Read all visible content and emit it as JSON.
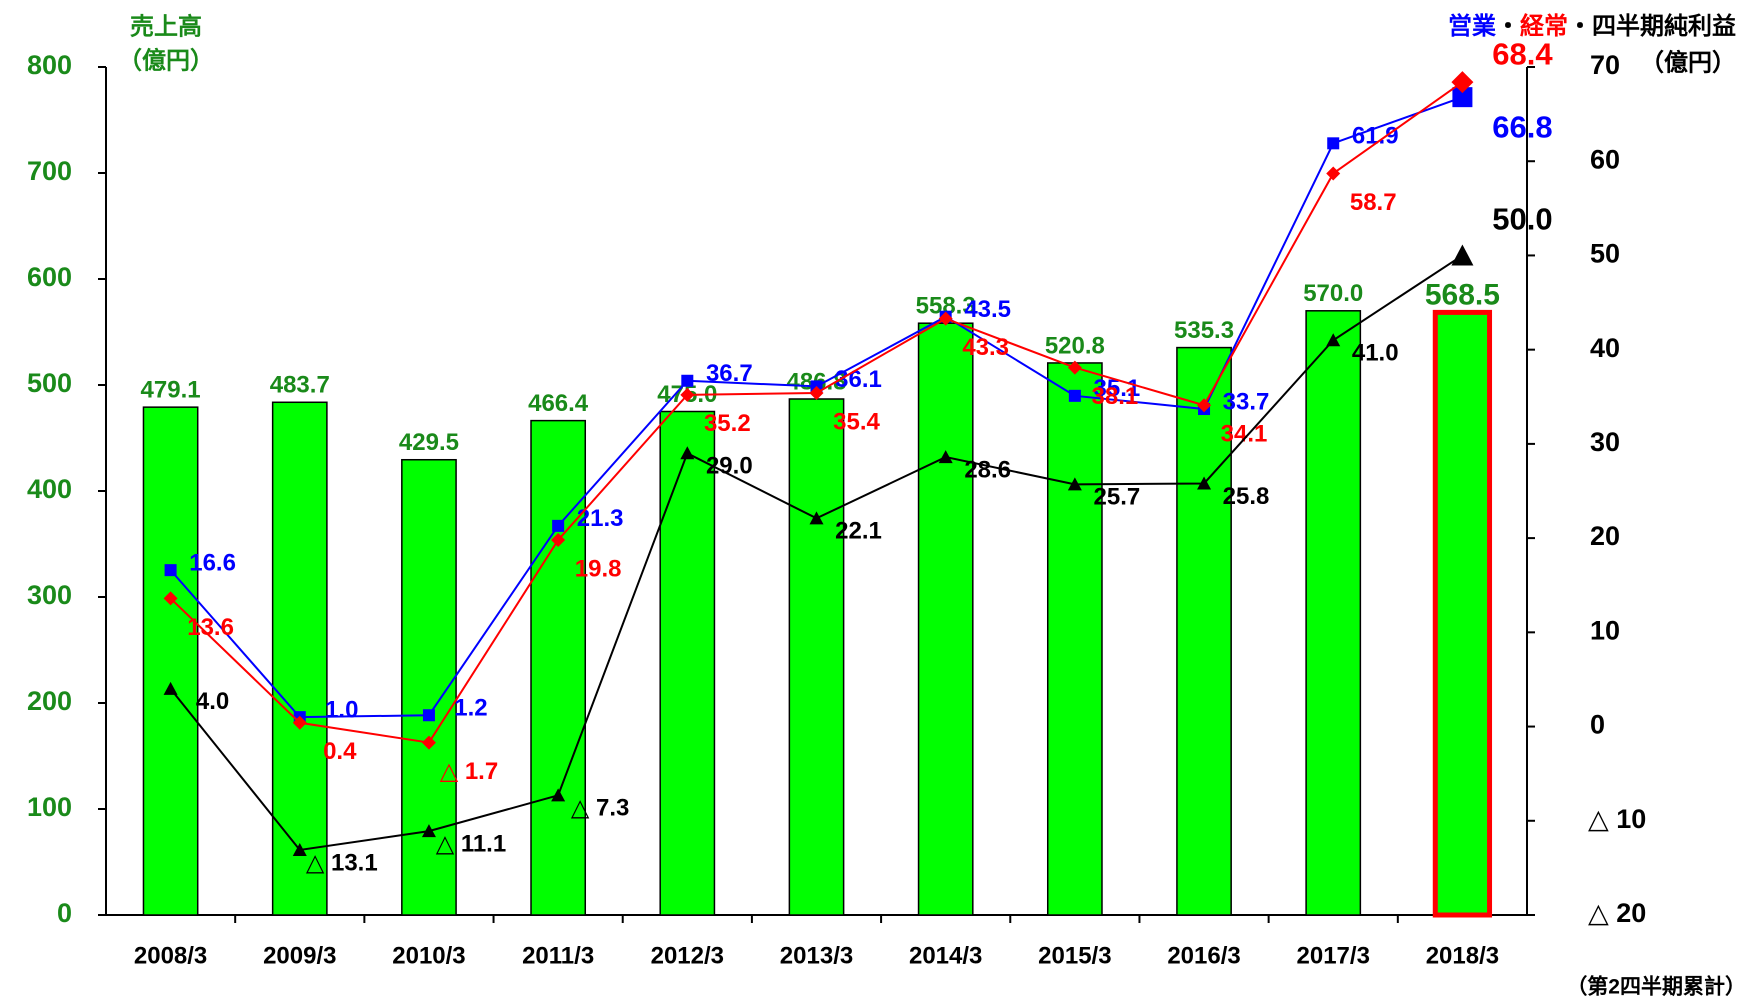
{
  "chart_data": {
    "type": "bar_line",
    "y_label": [
      "売上高",
      "（億円）"
    ],
    "y2_label_unit": "（億円）",
    "y2_label_separator": "・",
    "footnote": "（第2四半期累計）",
    "categories": [
      "2008/3",
      "2009/3",
      "2010/3",
      "2011/3",
      "2012/3",
      "2013/3",
      "2014/3",
      "2015/3",
      "2016/3",
      "2017/3",
      "2018/3"
    ],
    "bars": {
      "name": "売上高",
      "color": "#00ff00",
      "values": [
        479.1,
        483.7,
        429.5,
        466.4,
        475.0,
        486.8,
        558.3,
        520.8,
        535.3,
        570.0,
        568.5
      ],
      "value_labels": [
        "479.1",
        "483.7",
        "429.5",
        "466.4",
        "475.0",
        "486.8",
        "558.3",
        "520.8",
        "535.3",
        "570.0",
        "568.5"
      ]
    },
    "series": [
      {
        "name": "営業",
        "color": "#0000ff",
        "marker": "square",
        "axis": "y2",
        "values": [
          16.6,
          1.0,
          1.2,
          21.3,
          36.7,
          36.1,
          43.5,
          35.1,
          33.7,
          61.9,
          66.8
        ],
        "value_labels": [
          "16.6",
          "1.0",
          "1.2",
          "21.3",
          "36.7",
          "36.1",
          "43.5",
          "35.1",
          "33.7",
          "61.9",
          "66.8"
        ]
      },
      {
        "name": "経常",
        "color": "#ff0000",
        "marker": "diamond",
        "axis": "y2",
        "values": [
          13.6,
          0.4,
          -1.7,
          19.8,
          35.2,
          35.4,
          43.3,
          38.1,
          34.1,
          58.7,
          68.4
        ],
        "value_labels": [
          "13.6",
          "0.4",
          "△ 1.7",
          "19.8",
          "35.2",
          "35.4",
          "43.3",
          "38.1",
          "34.1",
          "58.7",
          "68.4"
        ]
      },
      {
        "name": "四半期純利益",
        "color": "#000000",
        "marker": "triangle",
        "axis": "y2",
        "values": [
          4.0,
          -13.1,
          -11.1,
          -7.3,
          29.0,
          22.1,
          28.6,
          25.7,
          25.8,
          41.0,
          50.0
        ],
        "value_labels": [
          "4.0",
          "△ 13.1",
          "△ 11.1",
          "△ 7.3",
          "29.0",
          "22.1",
          "28.6",
          "25.7",
          "25.8",
          "41.0",
          "50.0"
        ]
      }
    ],
    "ylim": [
      0,
      800
    ],
    "yticks": [
      0,
      100,
      200,
      300,
      400,
      500,
      600,
      700,
      800
    ],
    "y2lim": [
      -20,
      70
    ],
    "y2ticks": [
      {
        "value": -20,
        "label": "△ 20"
      },
      {
        "value": -10,
        "label": "△ 10"
      },
      0,
      10,
      20,
      30,
      40,
      50,
      60,
      70
    ],
    "highlight_color": "#ff0000"
  }
}
